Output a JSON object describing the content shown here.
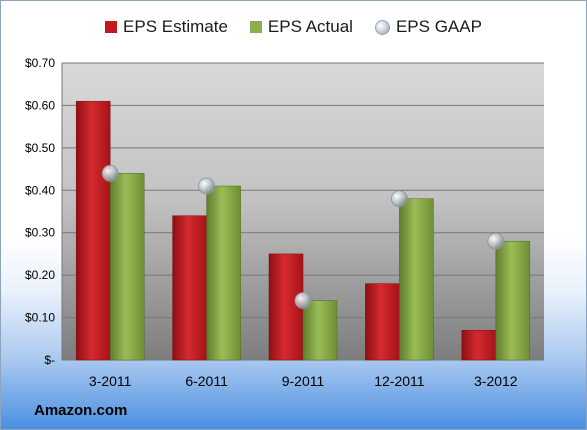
{
  "company": "Amazon.com",
  "colors": {
    "estimate": "#c0181e",
    "actual": "#8cae4c",
    "gaap": "#b8c0c8"
  },
  "chart_data": {
    "type": "bar",
    "categories": [
      "3-2011",
      "6-2011",
      "9-2011",
      "12-2011",
      "3-2012"
    ],
    "series": [
      {
        "name": "EPS Estimate",
        "values": [
          0.61,
          0.34,
          0.25,
          0.18,
          0.07
        ]
      },
      {
        "name": "EPS Actual",
        "values": [
          0.44,
          0.41,
          0.14,
          0.38,
          0.28
        ]
      },
      {
        "name": "EPS GAAP",
        "values": [
          0.44,
          0.41,
          0.14,
          0.38,
          0.28
        ]
      }
    ],
    "yticks": [
      "$-",
      "$0.10",
      "$0.20",
      "$0.30",
      "$0.40",
      "$0.50",
      "$0.60",
      "$0.70"
    ],
    "ylim": [
      0,
      0.7
    ],
    "legend": "top-center",
    "grid": true
  }
}
